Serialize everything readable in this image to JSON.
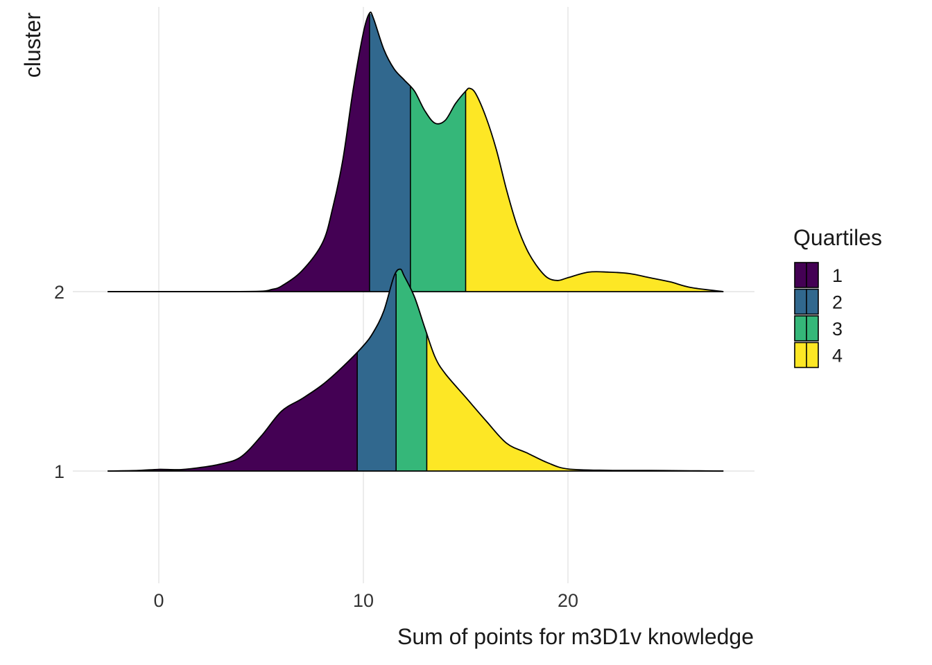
{
  "chart_data": {
    "type": "ridgeline-density",
    "title": "",
    "xlabel": "Sum of points for m3D1v knowledge",
    "ylabel": "cluster",
    "xlim": [
      -5,
      29
    ],
    "x_ticks": [
      0,
      10,
      20
    ],
    "grid": true,
    "legend": {
      "title": "Quartiles",
      "placement": "right",
      "entries": [
        {
          "label": "1",
          "color": "#440154"
        },
        {
          "label": "2",
          "color": "#31688E"
        },
        {
          "label": "3",
          "color": "#35B779"
        },
        {
          "label": "4",
          "color": "#FDE725"
        }
      ]
    },
    "series": [
      {
        "name": "1",
        "quartile_cuts": [
          9.7,
          11.6,
          13.1
        ],
        "x": [
          -2.5,
          -1,
          0,
          1,
          2,
          3,
          4,
          5,
          6,
          7,
          8,
          9,
          10,
          10.5,
          11,
          11.5,
          11.8,
          12,
          12.5,
          13,
          13.5,
          14,
          15,
          16,
          17,
          18,
          19,
          20,
          22,
          24,
          26,
          27.6
        ],
        "density": [
          0.0,
          0.004,
          0.012,
          0.01,
          0.025,
          0.05,
          0.1,
          0.25,
          0.43,
          0.52,
          0.62,
          0.75,
          0.9,
          1.0,
          1.15,
          1.4,
          1.45,
          1.4,
          1.25,
          1.03,
          0.82,
          0.7,
          0.53,
          0.36,
          0.2,
          0.13,
          0.06,
          0.015,
          0.005,
          0.004,
          0.002,
          0.0
        ]
      },
      {
        "name": "2",
        "quartile_cuts": [
          10.3,
          12.3,
          15.0
        ],
        "x": [
          -2.5,
          0,
          3,
          5,
          5.5,
          6,
          7,
          8,
          8.5,
          9,
          9.5,
          10,
          10.3,
          10.5,
          11,
          11.5,
          12,
          12.5,
          13,
          13.5,
          14,
          14.5,
          15,
          15.2,
          15.5,
          16,
          16.5,
          17,
          17.5,
          18,
          18.5,
          19,
          19.5,
          20,
          21,
          22,
          23,
          24,
          25,
          26,
          27.6
        ],
        "density": [
          0.0,
          0.0,
          0.0,
          0.003,
          0.015,
          0.04,
          0.15,
          0.35,
          0.6,
          0.95,
          1.45,
          1.86,
          2.0,
          1.96,
          1.74,
          1.6,
          1.52,
          1.44,
          1.3,
          1.21,
          1.23,
          1.35,
          1.44,
          1.46,
          1.42,
          1.25,
          1.02,
          0.73,
          0.48,
          0.3,
          0.18,
          0.1,
          0.08,
          0.1,
          0.14,
          0.14,
          0.13,
          0.1,
          0.07,
          0.03,
          0.0
        ]
      }
    ]
  }
}
